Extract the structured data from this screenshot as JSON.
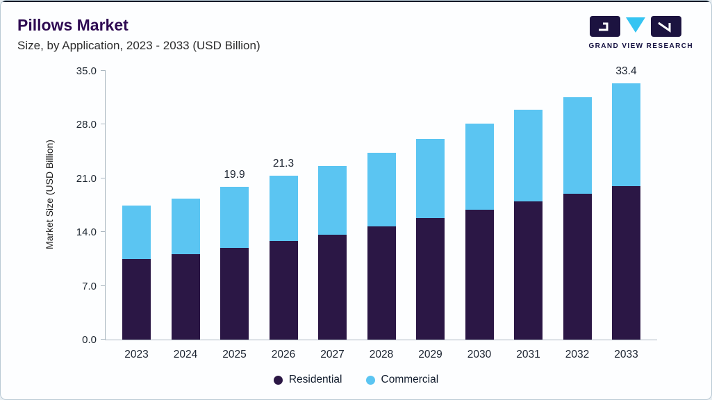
{
  "header": {
    "title": "Pillows Market",
    "subtitle": "Size, by Application, 2023 - 2033 (USD Billion)",
    "logo_text": "GRAND VIEW RESEARCH"
  },
  "chart_data": {
    "type": "bar",
    "stacked": true,
    "title": "Pillows Market Size, by Application, 2023 - 2033 (USD Billion)",
    "categories": [
      "2023",
      "2024",
      "2025",
      "2026",
      "2027",
      "2028",
      "2029",
      "2030",
      "2031",
      "2032",
      "2033"
    ],
    "series": [
      {
        "name": "Residential",
        "color": "#2b1745",
        "values": [
          10.5,
          11.1,
          11.9,
          12.8,
          13.7,
          14.7,
          15.8,
          16.9,
          18.0,
          19.0,
          20.0
        ]
      },
      {
        "name": "Commercial",
        "color": "#5bc5f2",
        "values": [
          7.0,
          7.3,
          8.0,
          8.5,
          8.9,
          9.6,
          10.3,
          11.2,
          11.9,
          12.6,
          13.4
        ]
      }
    ],
    "total_labels": {
      "2025": "19.9",
      "2026": "21.3",
      "2033": "33.4"
    },
    "xlabel": "",
    "ylabel": "Market Size (USD Billion)",
    "ylim": [
      0,
      35
    ],
    "yticks": [
      0,
      7,
      14,
      21,
      28,
      35
    ],
    "ytick_labels": [
      "0.0",
      "7.0",
      "14.0",
      "21.0",
      "28.0",
      "35.0"
    ],
    "grid": false,
    "legend_position": "bottom"
  },
  "legend": {
    "items": [
      {
        "label": "Residential",
        "color": "#2b1745"
      },
      {
        "label": "Commercial",
        "color": "#5bc5f2"
      }
    ]
  },
  "colors": {
    "accent_dark": "#2b1745",
    "accent_light": "#5bc5f2",
    "title": "#2e0a52",
    "border": "#b9c9d4",
    "top_line": "#0f1b29"
  }
}
